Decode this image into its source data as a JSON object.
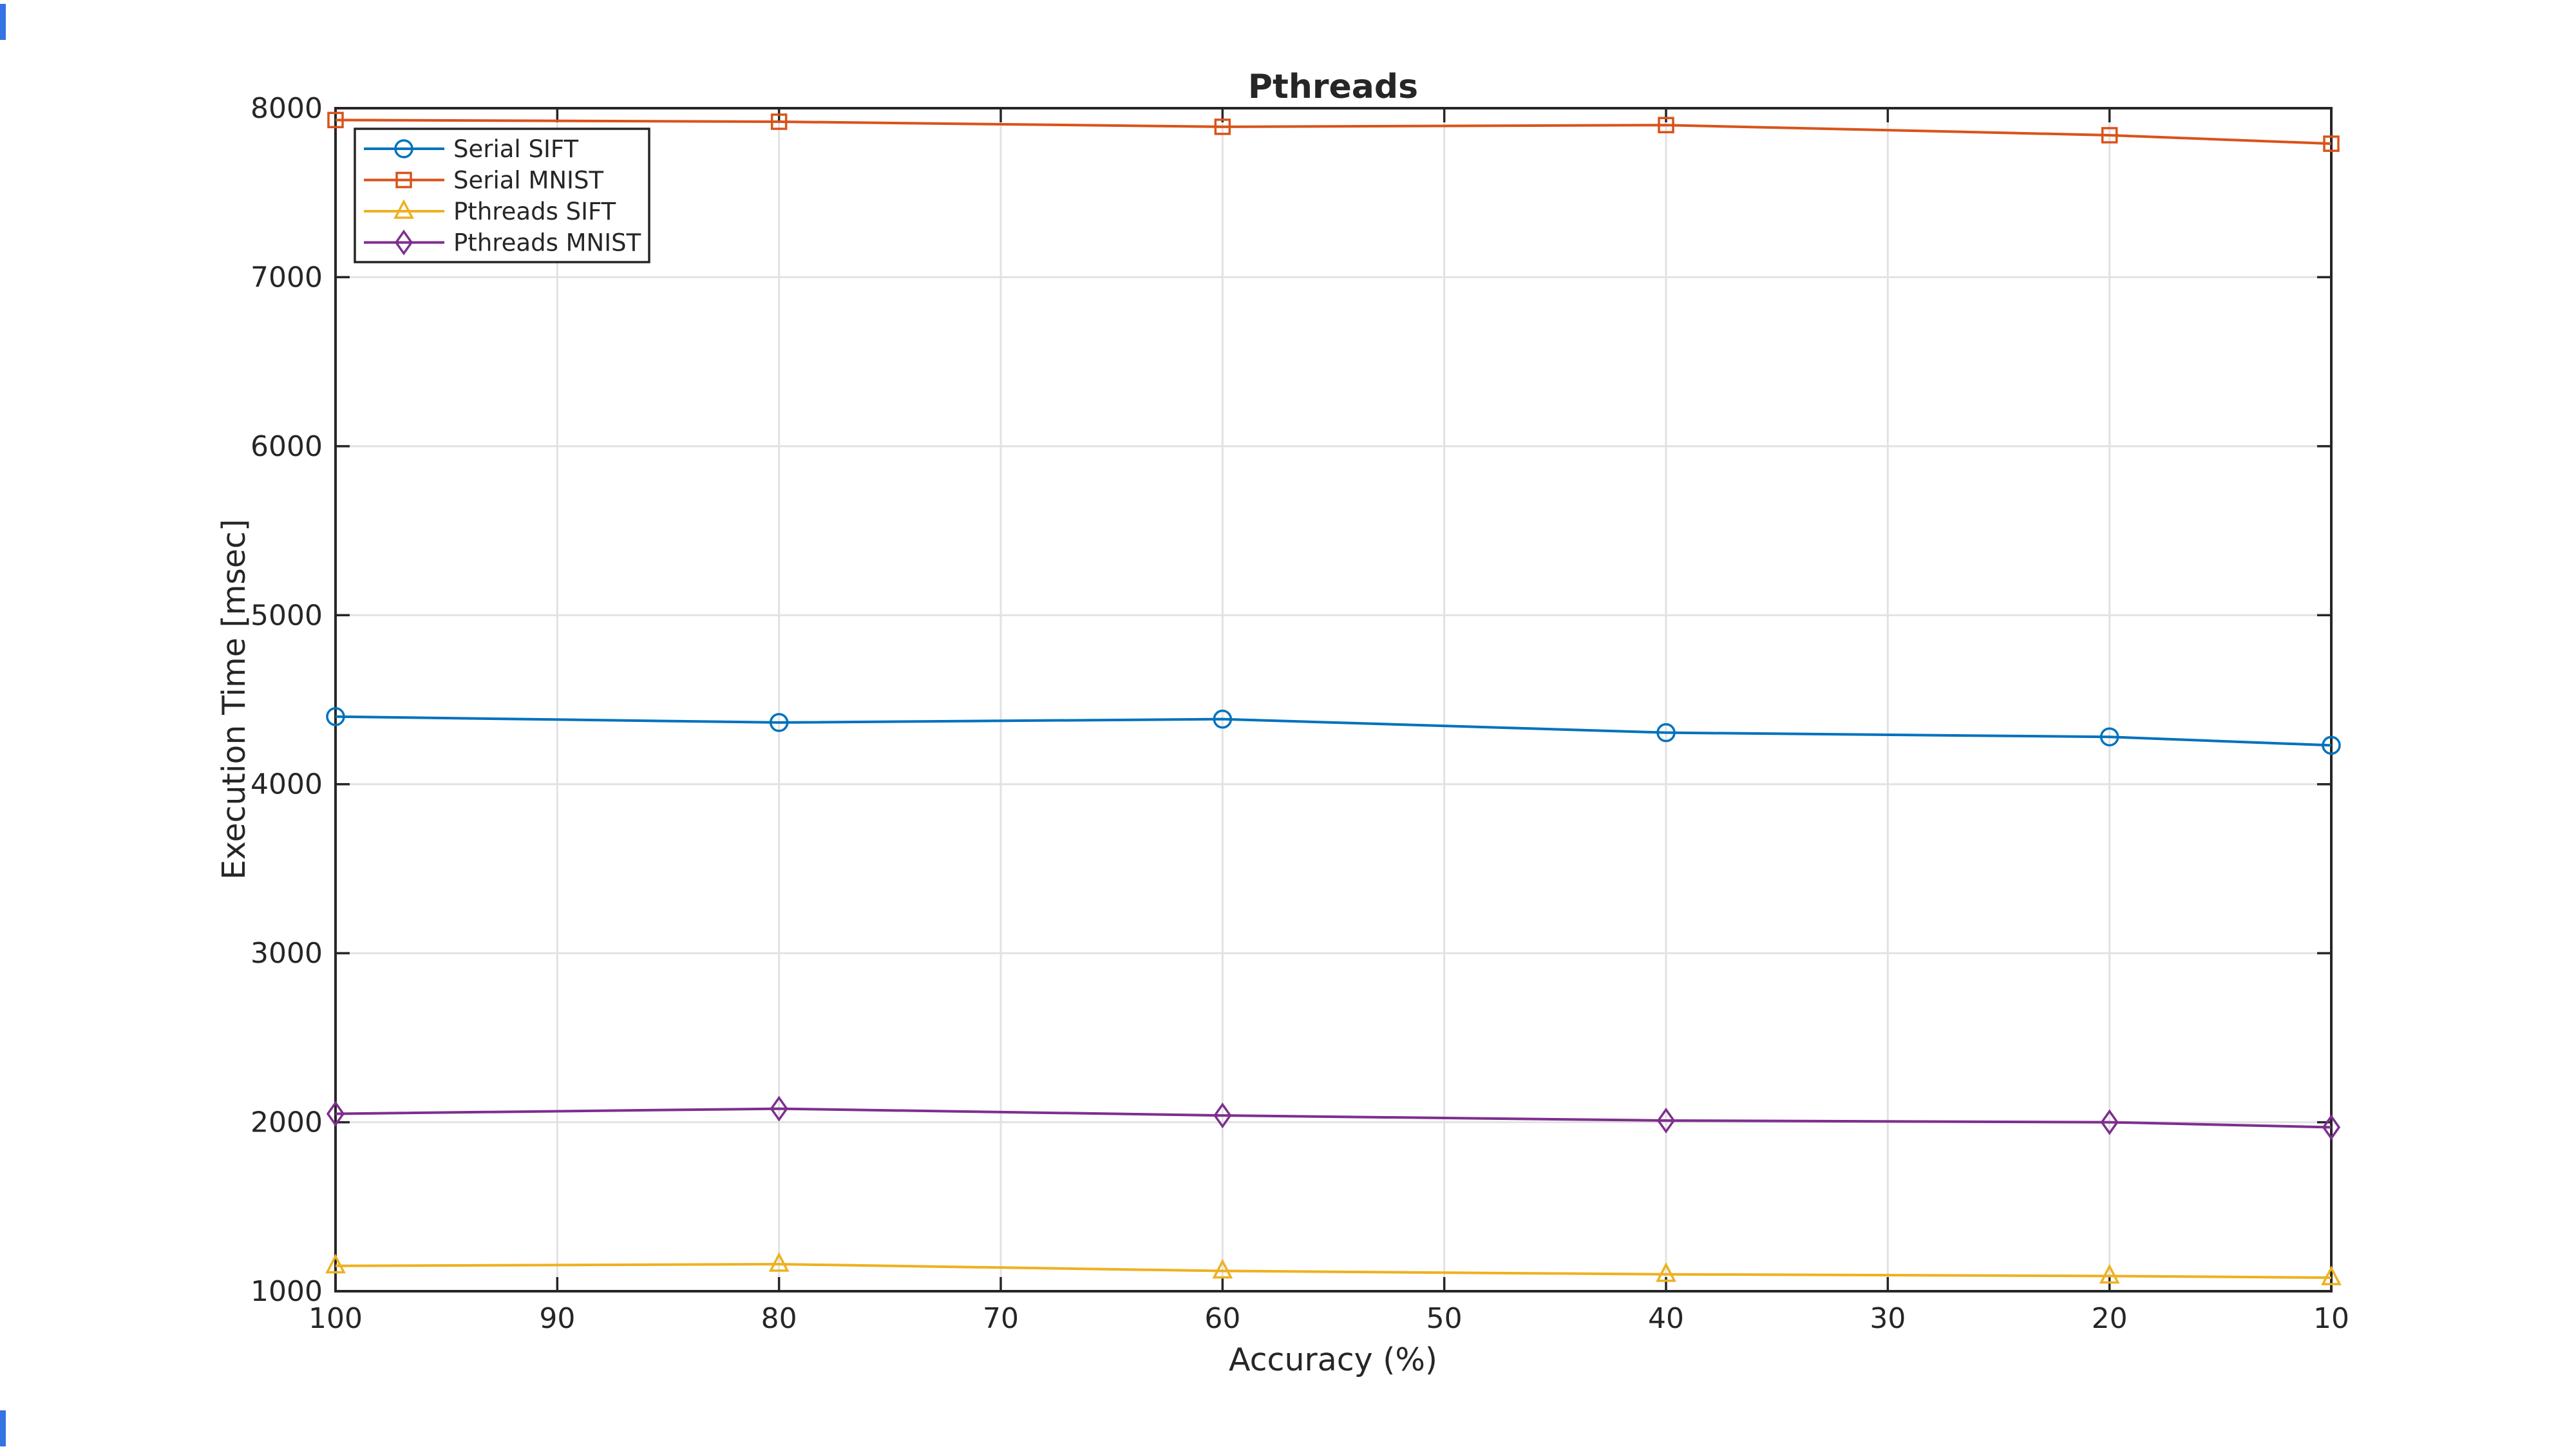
{
  "figure": {
    "background": "#ffffff"
  },
  "edge_marks": {
    "color": "#3572e3"
  },
  "chart_data": {
    "type": "line",
    "title": "Pthreads",
    "xlabel": "Accuracy (%)",
    "ylabel": "Execution Time [msec]",
    "xlim": [
      100,
      10
    ],
    "ylim": [
      1000,
      8000
    ],
    "x_ticks": [
      100,
      90,
      80,
      70,
      60,
      50,
      40,
      30,
      20,
      10
    ],
    "y_ticks": [
      1000,
      2000,
      3000,
      4000,
      5000,
      6000,
      7000,
      8000
    ],
    "grid": true,
    "legend_position": "top-left",
    "axis_color": "#262626",
    "grid_color": "#e2e2e2",
    "x": [
      100,
      80,
      60,
      40,
      20,
      10
    ],
    "series": [
      {
        "name": "Serial SIFT",
        "color": "#0072BD",
        "marker": "circle",
        "values": [
          4400,
          4365,
          4385,
          4305,
          4280,
          4230
        ]
      },
      {
        "name": "Serial MNIST",
        "color": "#D95319",
        "marker": "square",
        "values": [
          7930,
          7920,
          7890,
          7900,
          7840,
          7790
        ]
      },
      {
        "name": "Pthreads SIFT",
        "color": "#EDB120",
        "marker": "triangle",
        "values": [
          1150,
          1160,
          1120,
          1100,
          1090,
          1080
        ]
      },
      {
        "name": "Pthreads MNIST",
        "color": "#7E2F8E",
        "marker": "diamond",
        "values": [
          2050,
          2080,
          2040,
          2010,
          2000,
          1970
        ]
      }
    ]
  }
}
